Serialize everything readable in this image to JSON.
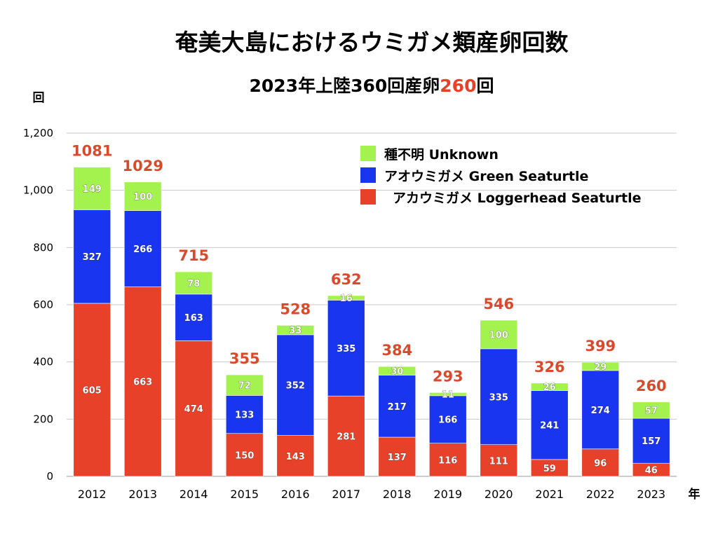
{
  "title": "奄美大島におけるウミガメ類産卵回数",
  "subtitle": {
    "prefix": "2023年上陸360回産卵",
    "highlight": "260",
    "suffix": "回"
  },
  "chart_data": {
    "type": "bar",
    "stacked": true,
    "title": "奄美大島におけるウミガメ類産卵回数",
    "ylabel": "回",
    "xlabel": "年",
    "ylim": [
      0,
      1200
    ],
    "yticks": [
      "0",
      "200",
      "400",
      "600",
      "800",
      "1,000",
      "1,200"
    ],
    "ytick_values": [
      0,
      200,
      400,
      600,
      800,
      1000,
      1200
    ],
    "grid": true,
    "legend_position": "top-right",
    "categories": [
      "2012",
      "2013",
      "2014",
      "2015",
      "2016",
      "2017",
      "2018",
      "2019",
      "2020",
      "2021",
      "2022",
      "2023"
    ],
    "totals": [
      1081,
      1029,
      715,
      355,
      528,
      632,
      384,
      293,
      546,
      326,
      399,
      260
    ],
    "series": [
      {
        "name": "アカウミガメ Loggerhead Seaturtle",
        "color": "#e8412a",
        "values": [
          605,
          663,
          474,
          150,
          143,
          281,
          137,
          116,
          111,
          59,
          96,
          46
        ]
      },
      {
        "name": "アオウミガメ Green Seaturtle",
        "color": "#1a35f0",
        "values": [
          327,
          266,
          163,
          133,
          352,
          335,
          217,
          166,
          335,
          241,
          274,
          157
        ]
      },
      {
        "name": "種不明 Unknown",
        "color": "#a4f24e",
        "values": [
          149,
          100,
          78,
          72,
          33,
          16,
          30,
          11,
          100,
          26,
          29,
          57
        ]
      }
    ],
    "legend_order": [
      2,
      1,
      0
    ],
    "total_label_color": "#d94a2c"
  }
}
